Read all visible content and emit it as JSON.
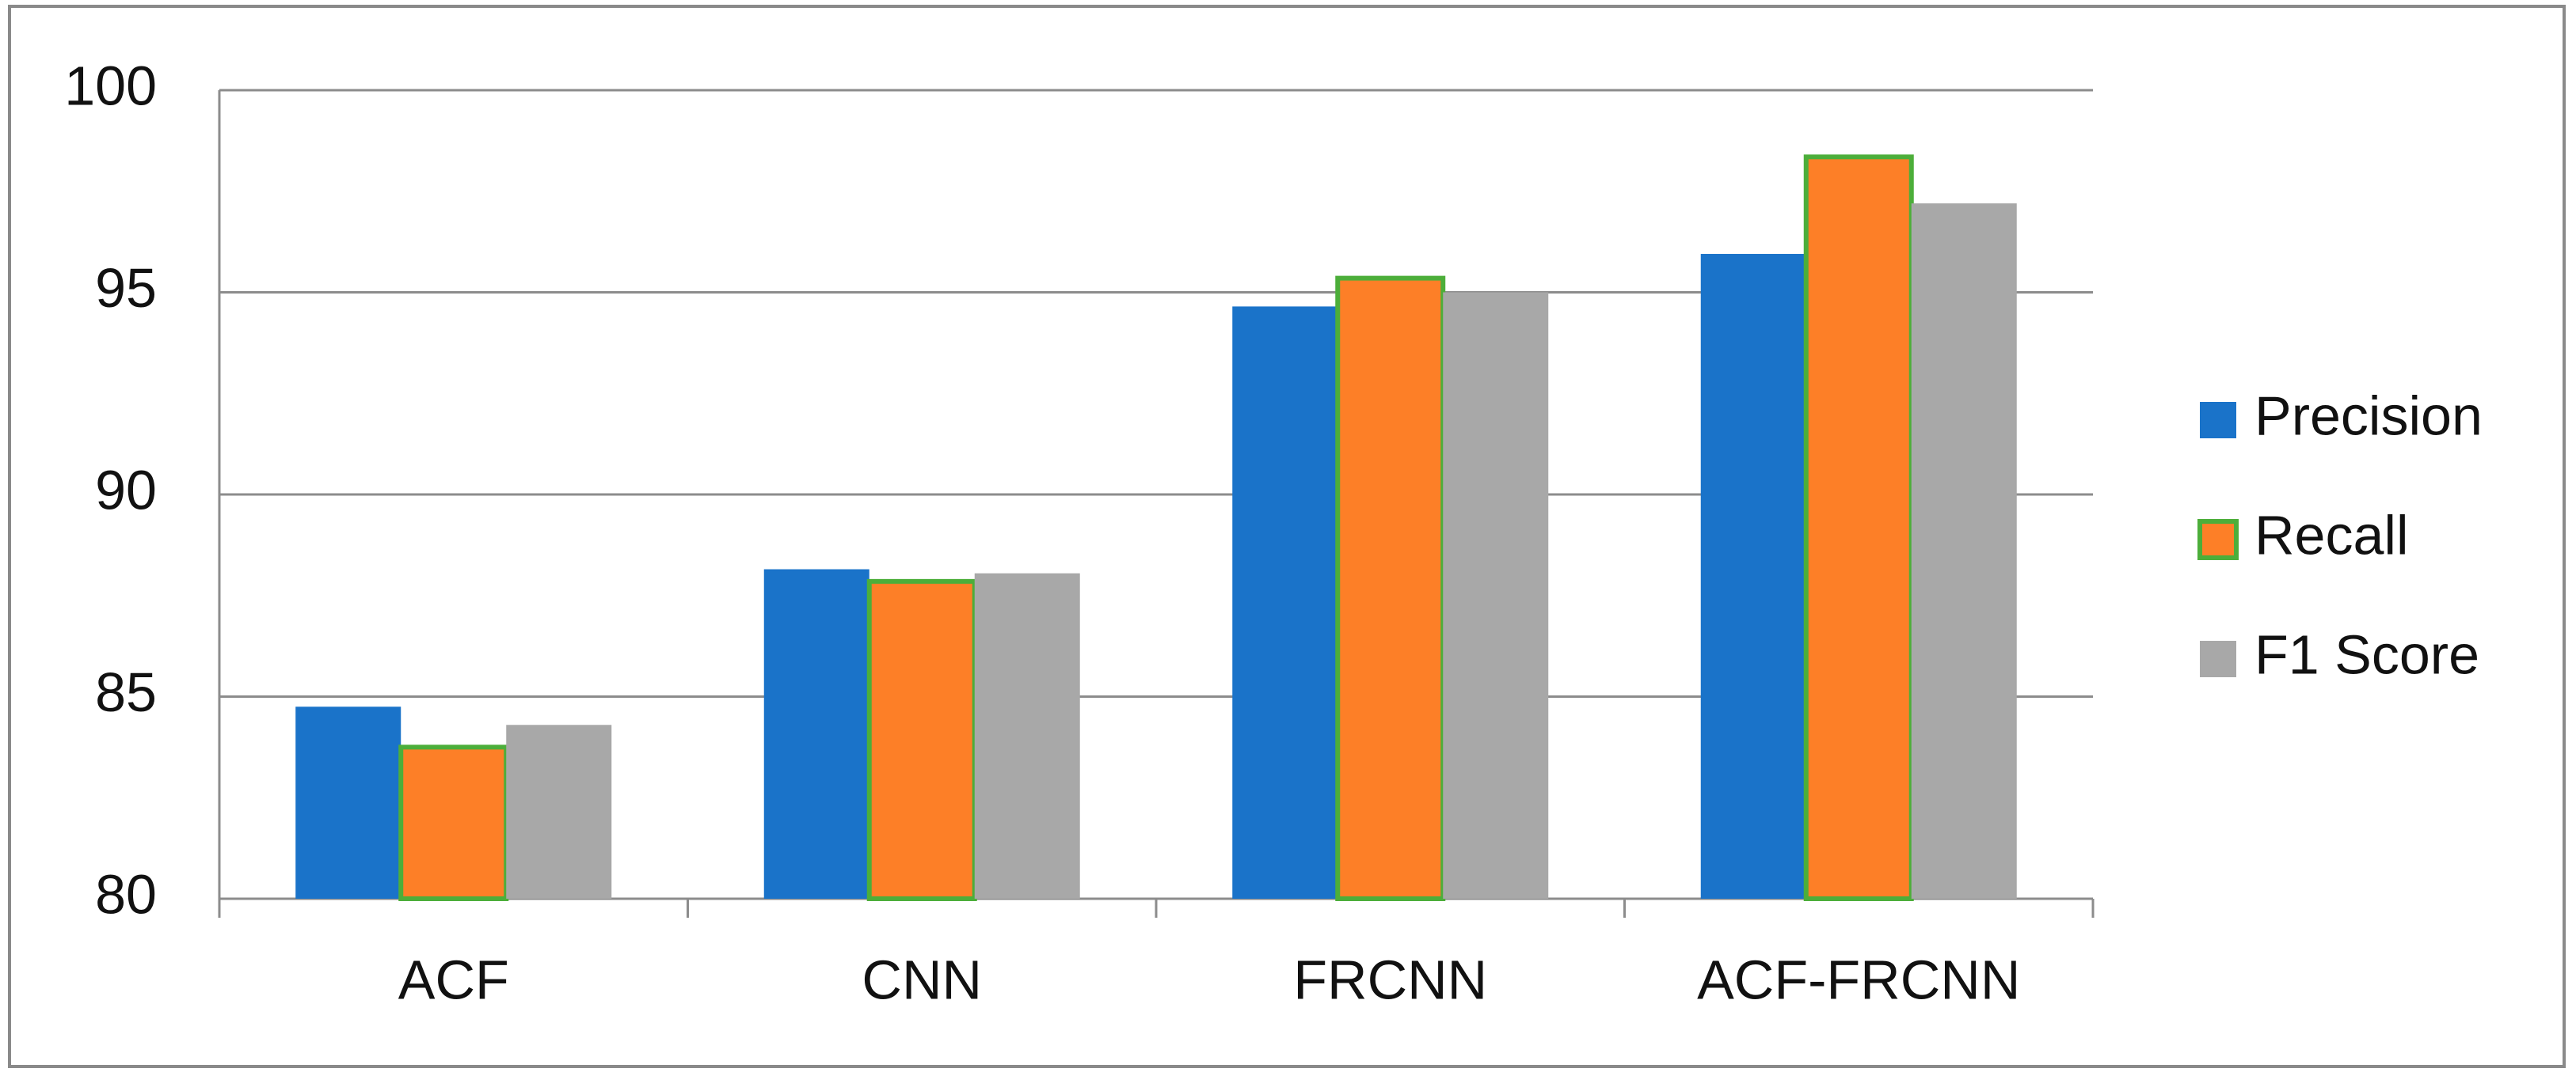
{
  "chart_data": {
    "type": "bar",
    "categories": [
      "ACF",
      "CNN",
      "FRCNN",
      "ACF-FRCNN"
    ],
    "series": [
      {
        "name": "Precision",
        "color": "#1a73c9",
        "values": [
          84.75,
          88.15,
          94.65,
          95.95
        ]
      },
      {
        "name": "Recall",
        "color": "#fd7f27",
        "edge_color": "#4cae3a",
        "values": [
          83.75,
          87.85,
          95.35,
          98.35
        ]
      },
      {
        "name": "F1 Score",
        "color": "#a8a8a8",
        "values": [
          84.3,
          88.05,
          95.0,
          97.2
        ]
      }
    ],
    "ylim": [
      80,
      100
    ],
    "yticks": [
      80,
      85,
      90,
      95,
      100
    ],
    "grid": true,
    "legend": "right"
  }
}
